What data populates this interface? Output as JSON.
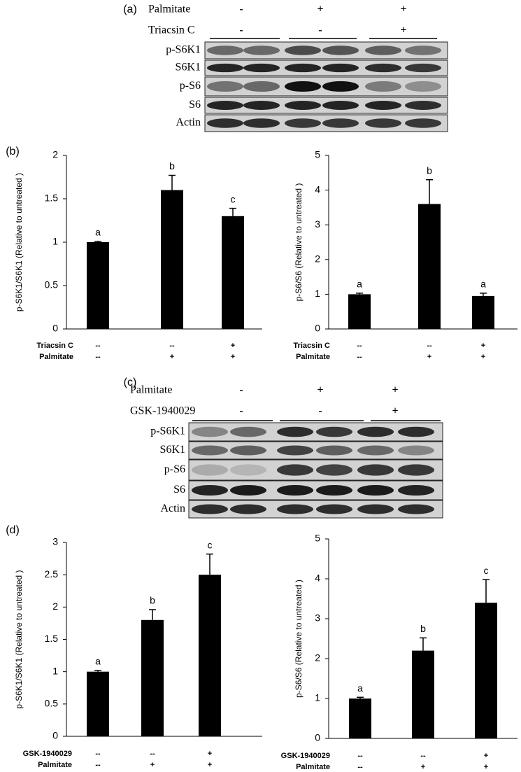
{
  "panel_labels": [
    "(a)",
    "(b)",
    "(c)",
    "(d)"
  ],
  "blots": [
    {
      "conditions": [
        {
          "name": "Palmitate",
          "signs": [
            "-",
            "+",
            "+"
          ]
        },
        {
          "name": "Triacsin C",
          "signs": [
            "-",
            "-",
            "+"
          ]
        }
      ],
      "rows": [
        "p-S6K1",
        "S6K1",
        "p-S6",
        "S6",
        "Actin"
      ]
    },
    {
      "conditions": [
        {
          "name": "Palmitate",
          "signs": [
            "-",
            "+",
            "+"
          ]
        },
        {
          "name": "GSK-1940029",
          "signs": [
            "-",
            "-",
            "+"
          ]
        }
      ],
      "rows": [
        "p-S6K1",
        "S6K1",
        "p-S6",
        "S6",
        "Actin"
      ]
    }
  ],
  "chart_data": [
    {
      "type": "bar",
      "ylabel": "p-S6K1/S6K1 (Relative to untreated )",
      "values": [
        1,
        1.6,
        1.3
      ],
      "errors": [
        0.01,
        0.17,
        0.09
      ],
      "annotations": [
        "a",
        "b",
        "c"
      ],
      "color": "#000000",
      "ylim": [
        0,
        2
      ],
      "yticks": [
        0,
        0.5,
        1,
        1.5,
        2
      ],
      "conditions": [
        {
          "name": "Triacsin C",
          "signs": [
            "--",
            "--",
            "+"
          ]
        },
        {
          "name": "Palmitate",
          "signs": [
            "--",
            "+",
            "+"
          ]
        }
      ]
    },
    {
      "type": "bar",
      "ylabel": "p-S6/S6 (Relative to untreated )",
      "values": [
        1,
        3.6,
        0.95
      ],
      "errors": [
        0.03,
        0.7,
        0.08
      ],
      "annotations": [
        "a",
        "b",
        "a"
      ],
      "color": "#000000",
      "ylim": [
        0,
        5
      ],
      "yticks": [
        0,
        1,
        2,
        3,
        4,
        5
      ],
      "conditions": [
        {
          "name": "Triacsin C",
          "signs": [
            "--",
            "--",
            "+"
          ]
        },
        {
          "name": "Palmitate",
          "signs": [
            "--",
            "+",
            "+"
          ]
        }
      ]
    },
    {
      "type": "bar",
      "ylabel": "p-S6K1/S6K1 (Relative to untreated )",
      "values": [
        1,
        1.8,
        2.5
      ],
      "errors": [
        0.02,
        0.16,
        0.32
      ],
      "annotations": [
        "a",
        "b",
        "c"
      ],
      "color": "#000000",
      "ylim": [
        0,
        3
      ],
      "yticks": [
        0,
        0.5,
        1,
        1.5,
        2,
        2.5,
        3
      ],
      "conditions": [
        {
          "name": "GSK-1940029",
          "signs": [
            "--",
            "--",
            "+"
          ]
        },
        {
          "name": "Palmitate",
          "signs": [
            "--",
            "+",
            "+"
          ]
        }
      ]
    },
    {
      "type": "bar",
      "ylabel": "p-S6/S6 (Relative to untreated )",
      "values": [
        1,
        2.2,
        3.4
      ],
      "errors": [
        0.03,
        0.32,
        0.58
      ],
      "annotations": [
        "a",
        "b",
        "c"
      ],
      "color": "#000000",
      "ylim": [
        0,
        5
      ],
      "yticks": [
        0,
        1,
        2,
        3,
        4,
        5
      ],
      "conditions": [
        {
          "name": "GSK-1940029",
          "signs": [
            "--",
            "--",
            "+"
          ]
        },
        {
          "name": "Palmitate",
          "signs": [
            "--",
            "+",
            "+"
          ]
        }
      ]
    }
  ]
}
